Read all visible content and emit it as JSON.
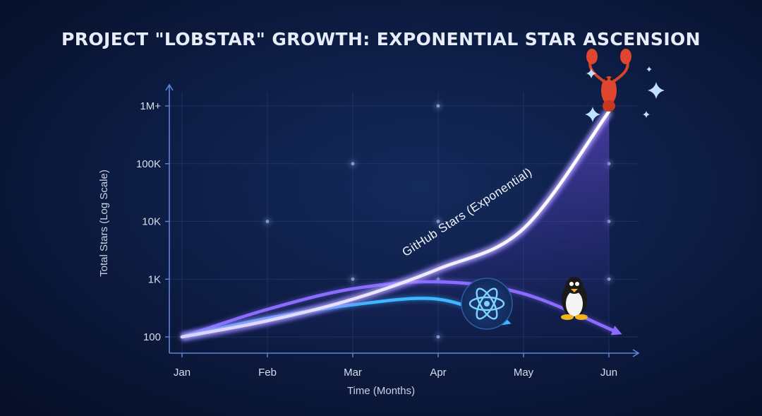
{
  "chart_data": {
    "type": "line",
    "title": "PROJECT \"LOBSTAR\" GROWTH: EXPONENTIAL STAR ASCENSION",
    "xlabel": "Time (Months)",
    "ylabel": "Total Stars (Log Scale)",
    "y_scale": "log",
    "ylim": [
      100,
      1000000
    ],
    "categories": [
      "Jan",
      "Feb",
      "Mar",
      "Apr",
      "May",
      "Jun"
    ],
    "y_ticks": [
      {
        "value": 100,
        "label": "100"
      },
      {
        "value": 1000,
        "label": "1K"
      },
      {
        "value": 10000,
        "label": "10K"
      },
      {
        "value": 100000,
        "label": "100K"
      },
      {
        "value": 1000000,
        "label": "1M+"
      }
    ],
    "grid": true,
    "series": [
      {
        "name": "GitHub Stars (Exponential)",
        "color": "#ffffff",
        "glow": "#7c5cff",
        "icon": "lobster-icon",
        "x": [
          0,
          1,
          2,
          3,
          4,
          5
        ],
        "values": [
          100,
          190,
          450,
          1500,
          7500,
          800000
        ]
      },
      {
        "name": "",
        "color": "#3fb6ff",
        "icon": "react-atom-icon",
        "x": [
          0,
          1,
          2,
          3,
          3.8
        ],
        "values": [
          100,
          210,
          360,
          450,
          180
        ]
      },
      {
        "name": "",
        "color": "#8b6cff",
        "icon": "linux-penguin-icon",
        "x": [
          0,
          1,
          2,
          3,
          4,
          5.1
        ],
        "values": [
          100,
          300,
          680,
          900,
          560,
          120
        ]
      }
    ]
  }
}
